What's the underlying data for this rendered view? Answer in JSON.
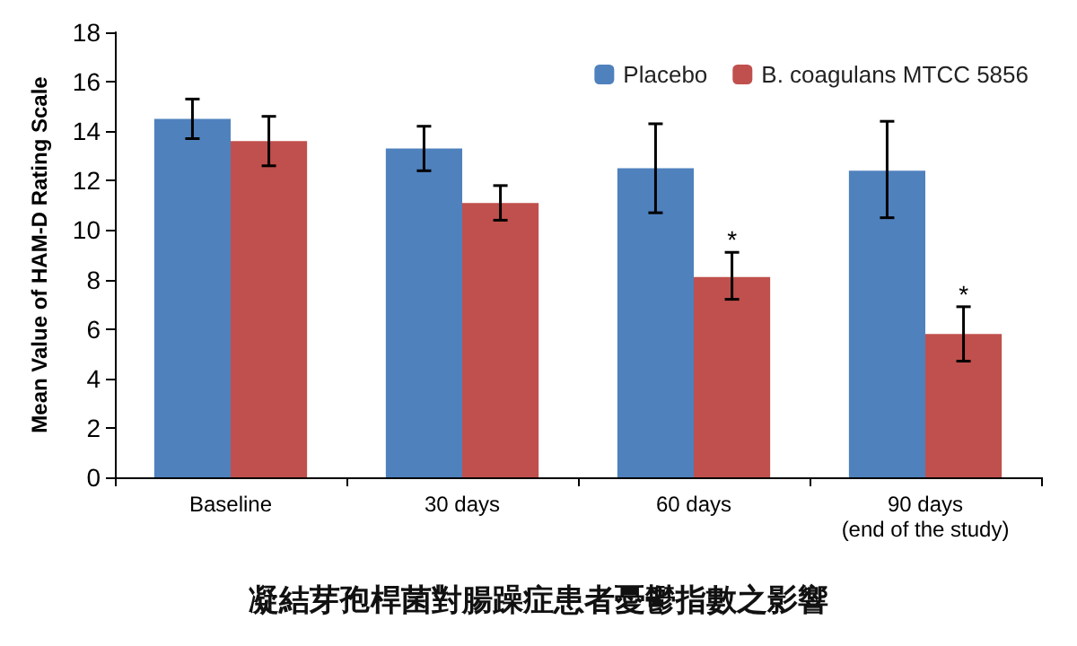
{
  "chart_data": {
    "type": "bar",
    "title": "凝結芽孢桿菌對腸躁症患者憂鬱指數之影響",
    "ylabel": "Mean Value of HAM-D Rating Scale",
    "categories": [
      "Baseline",
      "30 days",
      "60 days",
      "90 days\n(end of the study)"
    ],
    "series": [
      {
        "name": "Placebo",
        "color": "#4f81bd",
        "values": [
          14.5,
          13.3,
          12.5,
          12.4
        ],
        "errors": [
          [
            13.7,
            15.3
          ],
          [
            12.4,
            14.2
          ],
          [
            10.7,
            14.3
          ],
          [
            10.5,
            14.4
          ]
        ]
      },
      {
        "name": "B. coagulans MTCC 5856",
        "color": "#c0504d",
        "values": [
          13.6,
          11.1,
          8.1,
          5.8
        ],
        "errors": [
          [
            12.6,
            14.6
          ],
          [
            10.4,
            11.8
          ],
          [
            7.2,
            9.1
          ],
          [
            4.7,
            6.9
          ]
        ]
      }
    ],
    "annotations": [
      {
        "text": "*",
        "x": "60 days",
        "y": 9.6
      },
      {
        "text": "*",
        "x": "90 days\n(end of the study)",
        "y": 7.4
      }
    ],
    "ylim": [
      0,
      18
    ],
    "yticks": [
      0,
      2,
      4,
      6,
      8,
      10,
      12,
      14,
      16,
      18
    ],
    "grid": false,
    "legend": "top right"
  }
}
